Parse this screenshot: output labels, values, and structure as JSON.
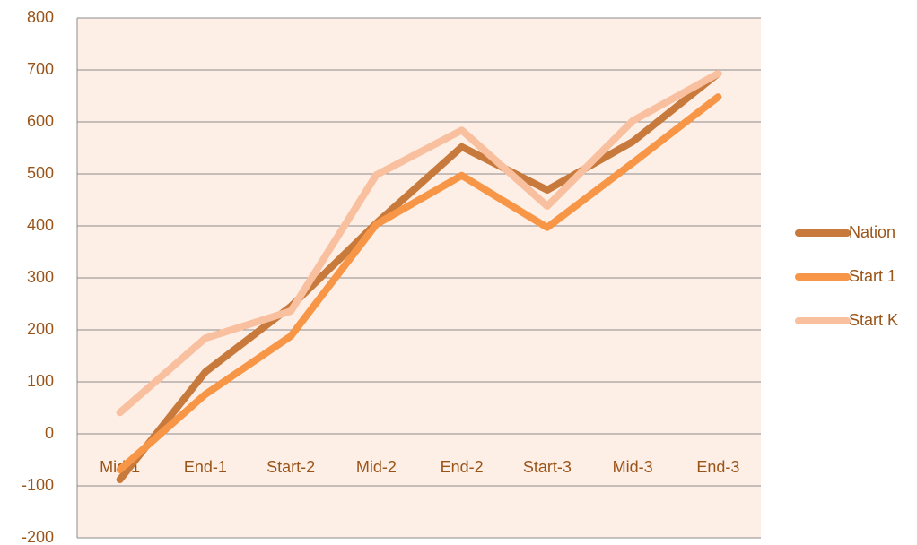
{
  "chart_data": {
    "type": "line",
    "categories": [
      "Mid-1",
      "End-1",
      "Start-2",
      "Mid-2",
      "End-2",
      "Start-3",
      "Mid-3",
      "End-3"
    ],
    "series": [
      {
        "name": "Nation",
        "color": "#c87a3c",
        "values": [
          -88,
          119,
          245,
          405,
          552,
          469,
          562,
          693
        ]
      },
      {
        "name": "Start 1",
        "color": "#f79646",
        "values": [
          -69,
          76,
          188,
          403,
          497,
          397,
          521,
          648
        ]
      },
      {
        "name": "Start K",
        "color": "#f9c0a0",
        "values": [
          41,
          184,
          236,
          498,
          584,
          438,
          602,
          693
        ]
      }
    ],
    "ylim": [
      -200,
      800
    ],
    "yticks": [
      -200,
      -100,
      0,
      100,
      200,
      300,
      400,
      500,
      600,
      700,
      800
    ],
    "grid": true,
    "legend": "right",
    "plot_background": "#fdeee6"
  }
}
